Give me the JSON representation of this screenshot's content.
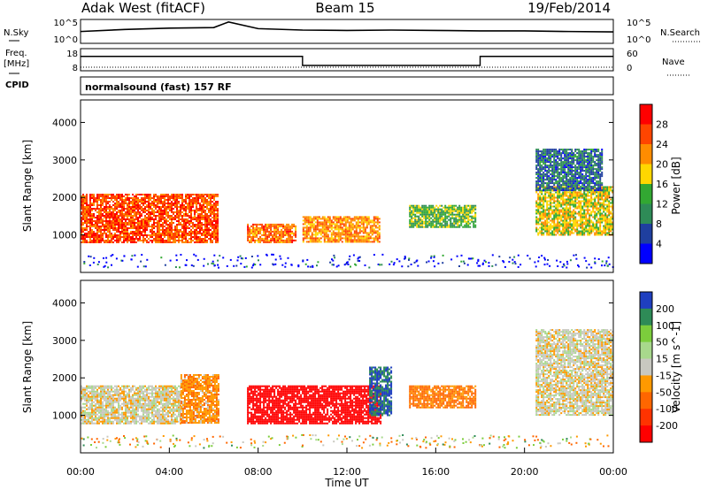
{
  "header": {
    "station": "Adak West (fitACF)",
    "beam": "Beam 15",
    "date": "19/Feb/2014"
  },
  "colors": {
    "red": "#ff0000",
    "orange": "#ff8c00",
    "yellow": "#ffd700",
    "green": "#32a832",
    "teal": "#2e8b57",
    "blue": "#0000ff",
    "gray": "#c8c8c0",
    "navy": "#00008b"
  },
  "chart_data": [
    {
      "type": "line",
      "panel": "noise",
      "left_labels": [
        "N.Sky",
        "10^5",
        "10^0"
      ],
      "right_labels": [
        "10^5",
        "10^0",
        "N.Search"
      ],
      "y_scale": "log",
      "ylim": [
        1,
        100000
      ],
      "x": [
        "00:00",
        "02:00",
        "04:00",
        "06:00",
        "06:40",
        "08:00",
        "10:00",
        "12:00",
        "14:00",
        "16:00",
        "18:00",
        "20:00",
        "22:00",
        "24:00"
      ],
      "series": [
        {
          "name": "N.Sky",
          "values": [
            300,
            800,
            1500,
            2000,
            30000,
            1200,
            600,
            500,
            600,
            500,
            400,
            400,
            300,
            250
          ]
        },
        {
          "name": "N.Search",
          "values": [
            1,
            1,
            1,
            1,
            1,
            1,
            1,
            1,
            1,
            1,
            1,
            1,
            1,
            1
          ]
        }
      ]
    },
    {
      "type": "line",
      "panel": "frequency",
      "left_labels": [
        "Freq.",
        "[MHz]",
        "18",
        "8"
      ],
      "right_labels": [
        "60",
        "0",
        "Nave"
      ],
      "ylim": [
        8,
        18
      ],
      "x": [
        "00:00",
        "10:00",
        "10:00",
        "18:00",
        "18:00",
        "24:00"
      ],
      "series": [
        {
          "name": "Freq.",
          "values": [
            14.5,
            14.5,
            10.4,
            10.4,
            14.5,
            14.5
          ]
        },
        {
          "name": "Nave",
          "values": [
            0,
            0,
            0,
            0,
            0,
            0
          ]
        }
      ]
    },
    {
      "type": "text",
      "panel": "cpid",
      "label": "CPID",
      "value": "normalsound (fast) 157 RF"
    },
    {
      "type": "heatmap",
      "panel": "power",
      "ylabel": "Slant Range [km]",
      "yticks": [
        "1000",
        "2000",
        "3000",
        "4000"
      ],
      "ylim": [
        0,
        4600
      ],
      "xlim": [
        0,
        24
      ],
      "colorbar_label": "Power [dB]",
      "colorbar_ticks": [
        "28",
        "24",
        "20",
        "16",
        "12",
        "8",
        "4"
      ],
      "colorbar_colors": [
        "#ff0000",
        "#ff4500",
        "#ff8c00",
        "#ffd700",
        "#32a832",
        "#2e8b57",
        "#1f3f9f",
        "#0000ff"
      ],
      "regions": [
        {
          "t": [
            0.0,
            6.2
          ],
          "r": [
            800,
            2100
          ],
          "level": 26
        },
        {
          "t": [
            7.5,
            9.7
          ],
          "r": [
            800,
            1300
          ],
          "level": 24
        },
        {
          "t": [
            10.0,
            13.5
          ],
          "r": [
            800,
            1500
          ],
          "level": 22
        },
        {
          "t": [
            14.8,
            17.8
          ],
          "r": [
            1200,
            1800
          ],
          "level": 14
        },
        {
          "t": [
            20.5,
            24.0
          ],
          "r": [
            1000,
            2300
          ],
          "level": 18
        },
        {
          "t": [
            20.5,
            23.5
          ],
          "r": [
            2200,
            3300
          ],
          "level": 8
        }
      ]
    },
    {
      "type": "heatmap",
      "panel": "velocity",
      "ylabel": "Slant Range [km]",
      "yticks": [
        "1000",
        "2000",
        "3000",
        "4000"
      ],
      "ylim": [
        0,
        4600
      ],
      "xlim": [
        0,
        24
      ],
      "xticks": [
        "00:00",
        "04:00",
        "08:00",
        "12:00",
        "16:00",
        "20:00",
        "00:00"
      ],
      "xlabel": "Time UT",
      "colorbar_label": "Velocity [m s^-1]",
      "colorbar_ticks": [
        "200",
        "100",
        "50",
        "15",
        "-15",
        "-50",
        "-100",
        "-200"
      ],
      "colorbar_colors": [
        "#1f3fbf",
        "#2e8b57",
        "#7ccd3c",
        "#a8d88c",
        "#c8c8c0",
        "#ff9900",
        "#ff6600",
        "#ff3300",
        "#ff0000"
      ],
      "regions": [
        {
          "t": [
            0.0,
            4.5
          ],
          "r": [
            800,
            1800
          ],
          "level": 0
        },
        {
          "t": [
            4.5,
            6.2
          ],
          "r": [
            800,
            2100
          ],
          "level": -40
        },
        {
          "t": [
            7.5,
            13.5
          ],
          "r": [
            800,
            1800
          ],
          "level": -180
        },
        {
          "t": [
            13.0,
            14.0
          ],
          "r": [
            1000,
            2300
          ],
          "level": 150
        },
        {
          "t": [
            14.8,
            17.8
          ],
          "r": [
            1200,
            1800
          ],
          "level": -60
        },
        {
          "t": [
            20.5,
            24.0
          ],
          "r": [
            1000,
            3300
          ],
          "level": 0
        }
      ]
    }
  ]
}
